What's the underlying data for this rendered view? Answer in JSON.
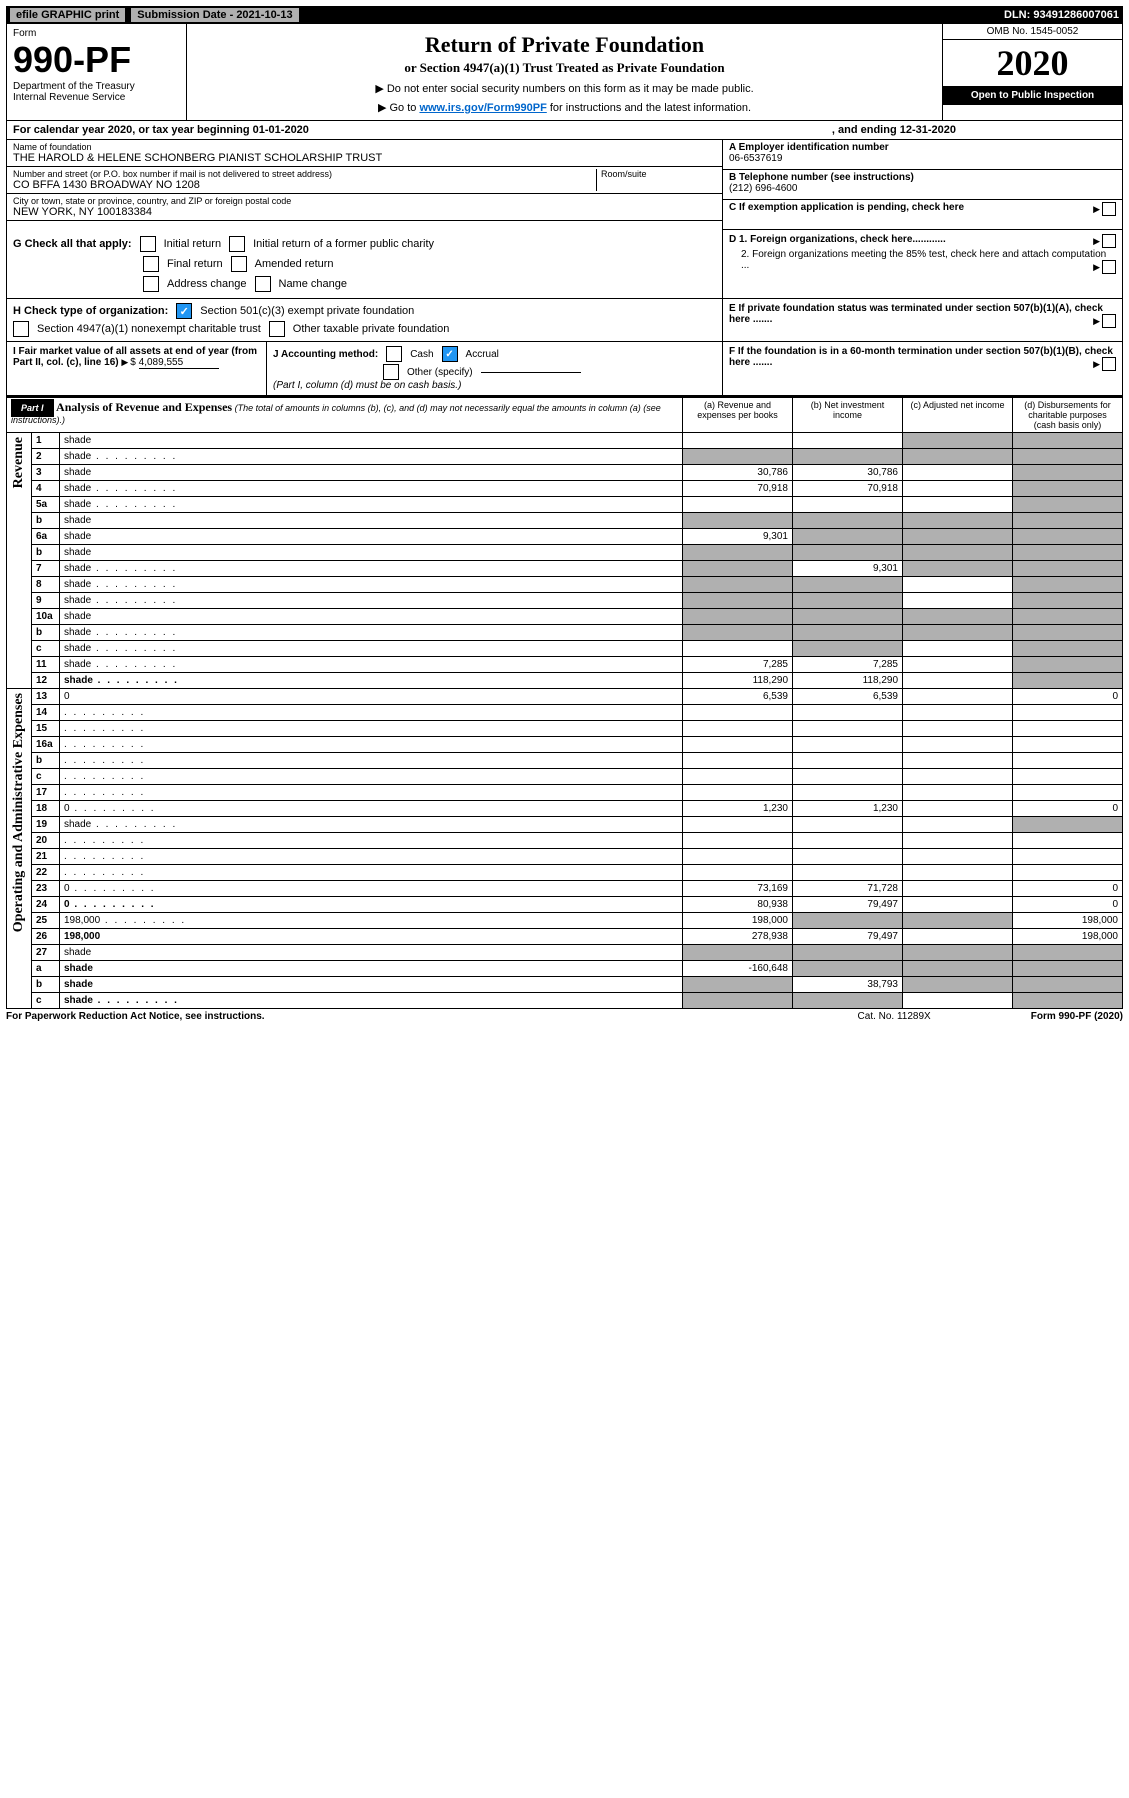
{
  "top": {
    "efile": "efile GRAPHIC print",
    "submission": "Submission Date - 2021-10-13",
    "dln": "DLN: 93491286007061"
  },
  "header": {
    "form_label": "Form",
    "form_no": "990-PF",
    "dept": "Department of the Treasury",
    "irs": "Internal Revenue Service",
    "title": "Return of Private Foundation",
    "subtitle": "or Section 4947(a)(1) Trust Treated as Private Foundation",
    "instr1": "▶ Do not enter social security numbers on this form as it may be made public.",
    "instr2_pre": "▶ Go to ",
    "instr2_link": "www.irs.gov/Form990PF",
    "instr2_post": " for instructions and the latest information.",
    "omb": "OMB No. 1545-0052",
    "year": "2020",
    "open": "Open to Public Inspection"
  },
  "calendar": {
    "line": "For calendar year 2020, or tax year beginning 01-01-2020",
    "ending": ", and ending 12-31-2020"
  },
  "entity": {
    "name_label": "Name of foundation",
    "name": "THE HAROLD & HELENE SCHONBERG PIANIST SCHOLARSHIP TRUST",
    "addr_label": "Number and street (or P.O. box number if mail is not delivered to street address)",
    "addr": "CO BFFA 1430 BROADWAY NO 1208",
    "room_label": "Room/suite",
    "city_label": "City or town, state or province, country, and ZIP or foreign postal code",
    "city": "NEW YORK, NY  100183384",
    "ein_label": "A Employer identification number",
    "ein": "06-6537619",
    "phone_label": "B Telephone number (see instructions)",
    "phone": "(212) 696-4600",
    "c_label": "C If exemption application is pending, check here",
    "d1": "D 1. Foreign organizations, check here............",
    "d2": "2. Foreign organizations meeting the 85% test, check here and attach computation ...",
    "e_label": "E  If private foundation status was terminated under section 507(b)(1)(A), check here .......",
    "f_label": "F  If the foundation is in a 60-month termination under section 507(b)(1)(B), check here ......."
  },
  "g": {
    "label": "G Check all that apply:",
    "opts": [
      "Initial return",
      "Initial return of a former public charity",
      "Final return",
      "Amended return",
      "Address change",
      "Name change"
    ]
  },
  "h": {
    "label": "H Check type of organization:",
    "opt1": "Section 501(c)(3) exempt private foundation",
    "opt2": "Section 4947(a)(1) nonexempt charitable trust",
    "opt3": "Other taxable private foundation"
  },
  "i": {
    "label": "I Fair market value of all assets at end of year (from Part II, col. (c), line 16)",
    "amount": "4,089,555"
  },
  "j": {
    "label": "J Accounting method:",
    "cash": "Cash",
    "accrual": "Accrual",
    "other": "Other (specify)",
    "note": "(Part I, column (d) must be on cash basis.)"
  },
  "part1": {
    "label": "Part I",
    "title": "Analysis of Revenue and Expenses",
    "subtitle": " (The total of amounts in columns (b), (c), and (d) may not necessarily equal the amounts in column (a) (see instructions).)",
    "col_a": "(a) Revenue and expenses per books",
    "col_b": "(b) Net investment income",
    "col_c": "(c) Adjusted net income",
    "col_d": "(d) Disbursements for charitable purposes (cash basis only)",
    "vert_revenue": "Revenue",
    "vert_expenses": "Operating and Administrative Expenses"
  },
  "rows": [
    {
      "n": "1",
      "d": "shade",
      "a": "",
      "b": "",
      "c": "shade"
    },
    {
      "n": "2",
      "d": "shade",
      "a": "shade",
      "b": "shade",
      "c": "shade",
      "dots": true
    },
    {
      "n": "3",
      "d": "shade",
      "a": "30,786",
      "b": "30,786",
      "c": ""
    },
    {
      "n": "4",
      "d": "shade",
      "a": "70,918",
      "b": "70,918",
      "c": "",
      "dots": true
    },
    {
      "n": "5a",
      "d": "shade",
      "a": "",
      "b": "",
      "c": "",
      "dots": true
    },
    {
      "n": "b",
      "d": "shade",
      "a": "shade",
      "b": "shade",
      "c": "shade"
    },
    {
      "n": "6a",
      "d": "shade",
      "a": "9,301",
      "b": "shade",
      "c": "shade"
    },
    {
      "n": "b",
      "d": "shade",
      "a": "shade",
      "b": "shade",
      "c": "shade"
    },
    {
      "n": "7",
      "d": "shade",
      "a": "shade",
      "b": "9,301",
      "c": "shade",
      "dots": true
    },
    {
      "n": "8",
      "d": "shade",
      "a": "shade",
      "b": "shade",
      "c": "",
      "dots": true
    },
    {
      "n": "9",
      "d": "shade",
      "a": "shade",
      "b": "shade",
      "c": "",
      "dots": true
    },
    {
      "n": "10a",
      "d": "shade",
      "a": "shade",
      "b": "shade",
      "c": "shade"
    },
    {
      "n": "b",
      "d": "shade",
      "a": "shade",
      "b": "shade",
      "c": "shade",
      "dots": true
    },
    {
      "n": "c",
      "d": "shade",
      "a": "",
      "b": "shade",
      "c": "",
      "dots": true
    },
    {
      "n": "11",
      "d": "shade",
      "a": "7,285",
      "b": "7,285",
      "c": "",
      "dots": true
    },
    {
      "n": "12",
      "d": "shade",
      "a": "118,290",
      "b": "118,290",
      "c": "",
      "bold": true,
      "dots": true
    }
  ],
  "exp_rows": [
    {
      "n": "13",
      "d": "0",
      "a": "6,539",
      "b": "6,539",
      "c": ""
    },
    {
      "n": "14",
      "d": "",
      "a": "",
      "b": "",
      "c": "",
      "dots": true
    },
    {
      "n": "15",
      "d": "",
      "a": "",
      "b": "",
      "c": "",
      "dots": true
    },
    {
      "n": "16a",
      "d": "",
      "a": "",
      "b": "",
      "c": "",
      "dots": true
    },
    {
      "n": "b",
      "d": "",
      "a": "",
      "b": "",
      "c": "",
      "dots": true
    },
    {
      "n": "c",
      "d": "",
      "a": "",
      "b": "",
      "c": "",
      "dots": true
    },
    {
      "n": "17",
      "d": "",
      "a": "",
      "b": "",
      "c": "",
      "dots": true
    },
    {
      "n": "18",
      "d": "0",
      "a": "1,230",
      "b": "1,230",
      "c": "",
      "dots": true
    },
    {
      "n": "19",
      "d": "shade",
      "a": "",
      "b": "",
      "c": "",
      "dots": true
    },
    {
      "n": "20",
      "d": "",
      "a": "",
      "b": "",
      "c": "",
      "dots": true
    },
    {
      "n": "21",
      "d": "",
      "a": "",
      "b": "",
      "c": "",
      "dots": true
    },
    {
      "n": "22",
      "d": "",
      "a": "",
      "b": "",
      "c": "",
      "dots": true
    },
    {
      "n": "23",
      "d": "0",
      "a": "73,169",
      "b": "71,728",
      "c": "",
      "dots": true
    },
    {
      "n": "24",
      "d": "0",
      "a": "80,938",
      "b": "79,497",
      "c": "",
      "bold": true,
      "dots": true
    },
    {
      "n": "25",
      "d": "198,000",
      "a": "198,000",
      "b": "shade",
      "c": "shade",
      "dots": true
    },
    {
      "n": "26",
      "d": "198,000",
      "a": "278,938",
      "b": "79,497",
      "c": "",
      "bold": true
    },
    {
      "n": "27",
      "d": "shade",
      "a": "shade",
      "b": "shade",
      "c": "shade"
    },
    {
      "n": "a",
      "d": "shade",
      "a": "-160,648",
      "b": "shade",
      "c": "shade",
      "bold": true
    },
    {
      "n": "b",
      "d": "shade",
      "a": "shade",
      "b": "38,793",
      "c": "shade",
      "bold": true
    },
    {
      "n": "c",
      "d": "shade",
      "a": "shade",
      "b": "shade",
      "c": "",
      "bold": true,
      "dots": true
    }
  ],
  "footer": {
    "left": "For Paperwork Reduction Act Notice, see instructions.",
    "mid": "Cat. No. 11289X",
    "right": "Form 990-PF (2020)"
  }
}
